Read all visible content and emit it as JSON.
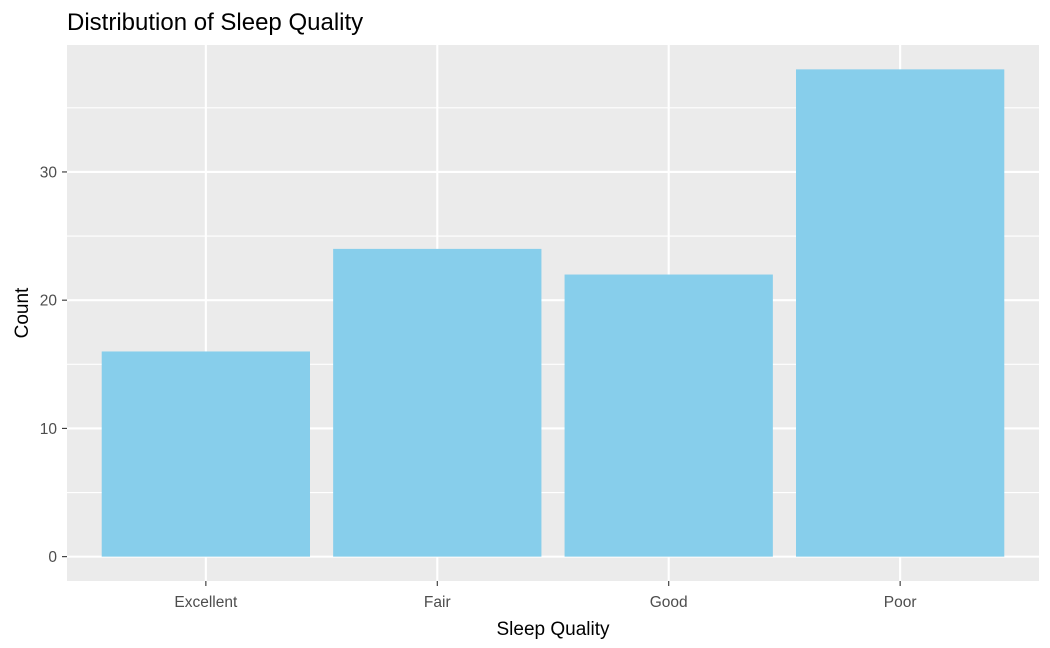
{
  "chart_data": {
    "type": "bar",
    "title": "Distribution of Sleep Quality",
    "xlabel": "Sleep Quality",
    "ylabel": "Count",
    "categories": [
      "Excellent",
      "Fair",
      "Good",
      "Poor"
    ],
    "values": [
      16,
      24,
      22,
      38
    ],
    "ylim": [
      -1.9,
      39.9
    ],
    "yticks": [
      0,
      10,
      20,
      30
    ],
    "grid": true,
    "legend": "none",
    "colors": {
      "bar": "#87CEEB",
      "panel_background": "#EBEBEB",
      "grid": "#FFFFFF",
      "tick_text": "#4D4D4D",
      "tick_mark": "#333333"
    }
  }
}
